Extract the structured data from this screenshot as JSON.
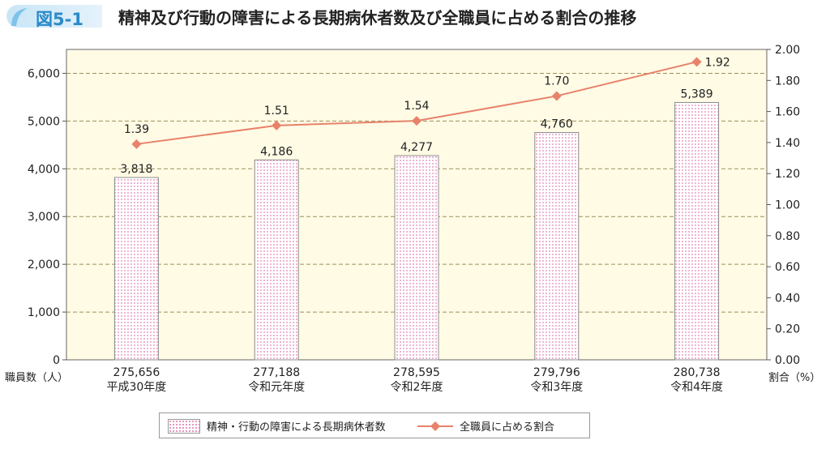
{
  "figure": {
    "number": "図5-1",
    "title": "精神及び行動の障害による長期病休者数及び全職員に占める割合の推移"
  },
  "colors": {
    "plot_bg": "#fffbe5",
    "bar_dots": "#e07ab1",
    "bar_border": "#8c8c8c",
    "line": "#e8826a",
    "marker": "#e8826a",
    "grid": "#9c8f5c",
    "badge_text": "#2a8ac9"
  },
  "chart_data": {
    "type": "bar",
    "categories": [
      "平成30年度",
      "令和元年度",
      "令和2年度",
      "令和3年度",
      "令和4年度"
    ],
    "total_staff": [
      "275,656",
      "277,188",
      "278,595",
      "279,796",
      "280,738"
    ],
    "series": [
      {
        "name": "精神・行動の障害による長期病休者数",
        "type": "bar",
        "axis": "left",
        "values": [
          3818,
          4186,
          4277,
          4760,
          5389
        ],
        "labels": [
          "3,818",
          "4,186",
          "4,277",
          "4,760",
          "5,389"
        ]
      },
      {
        "name": "全職員に占める割合",
        "type": "line",
        "axis": "right",
        "values": [
          1.39,
          1.51,
          1.54,
          1.7,
          1.92
        ],
        "labels": [
          "1.39",
          "1.51",
          "1.54",
          "1.70",
          "1.92"
        ]
      }
    ],
    "ylabel_left": "職員数（人）",
    "ylabel_right": "割合（%）",
    "ylim_left": [
      0,
      6500
    ],
    "ylim_right": [
      0,
      2.0
    ],
    "yticks_left": [
      "0",
      "1,000",
      "2,000",
      "3,000",
      "4,000",
      "5,000",
      "6,000"
    ],
    "yticks_right": [
      "0.00",
      "0.20",
      "0.40",
      "0.60",
      "0.80",
      "1.00",
      "1.20",
      "1.40",
      "1.60",
      "1.80",
      "2.00"
    ],
    "grid": true,
    "legend_position": "bottom"
  }
}
